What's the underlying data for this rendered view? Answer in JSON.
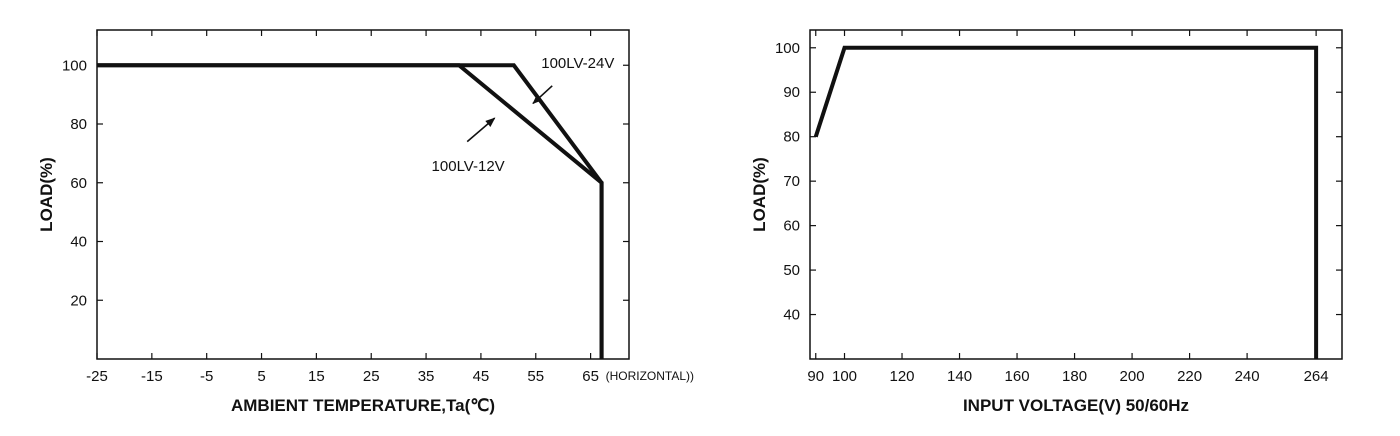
{
  "chart_data": [
    {
      "type": "line",
      "xlabel": "AMBIENT TEMPERATURE,Ta(℃)",
      "ylabel": "LOAD(%)",
      "x_ticks": [
        -25,
        -15,
        -5,
        5,
        15,
        25,
        35,
        45,
        55,
        65
      ],
      "x_tick_labels": [
        "-25",
        "-15",
        "-5",
        "5",
        "15",
        "25",
        "35",
        "45",
        "55",
        "65"
      ],
      "x_axis_note": "(HORIZONTAL)",
      "y_ticks": [
        20,
        40,
        60,
        80,
        100
      ],
      "y_tick_labels": [
        "20",
        "40",
        "60",
        "80",
        "100"
      ],
      "xlim": [
        -25,
        72
      ],
      "ylim": [
        0,
        112
      ],
      "grid": false,
      "series": [
        {
          "name": "100LV-24V",
          "x": [
            -25,
            51,
            67,
            67
          ],
          "y": [
            100,
            100,
            60,
            0
          ]
        },
        {
          "name": "100LV-12V",
          "x": [
            -25,
            41,
            67,
            67
          ],
          "y": [
            100,
            100,
            60,
            0
          ]
        }
      ],
      "annotations": [
        {
          "text": "100LV-24V",
          "x": 56,
          "y": 99,
          "arrow_from": [
            58,
            93
          ],
          "arrow_to": [
            54.5,
            87
          ]
        },
        {
          "text": "100LV-12V",
          "x": 36,
          "y": 64,
          "arrow_from": [
            42.5,
            74
          ],
          "arrow_to": [
            47.5,
            82
          ]
        }
      ]
    },
    {
      "type": "line",
      "xlabel": "INPUT VOLTAGE(V)  50/60Hz",
      "ylabel": "LOAD(%)",
      "x_ticks": [
        90,
        100,
        120,
        140,
        160,
        180,
        200,
        220,
        240,
        264
      ],
      "x_tick_labels": [
        "90",
        "100",
        "120",
        "140",
        "160",
        "180",
        "200",
        "220",
        "240",
        "264"
      ],
      "y_ticks": [
        40,
        50,
        60,
        70,
        80,
        90,
        100
      ],
      "y_tick_labels": [
        "40",
        "50",
        "60",
        "70",
        "80",
        "90",
        "100"
      ],
      "xlim": [
        88,
        273
      ],
      "ylim": [
        30,
        104
      ],
      "grid": false,
      "series": [
        {
          "x": [
            90,
            100,
            264,
            264
          ],
          "y": [
            80,
            100,
            100,
            30
          ]
        }
      ]
    }
  ]
}
